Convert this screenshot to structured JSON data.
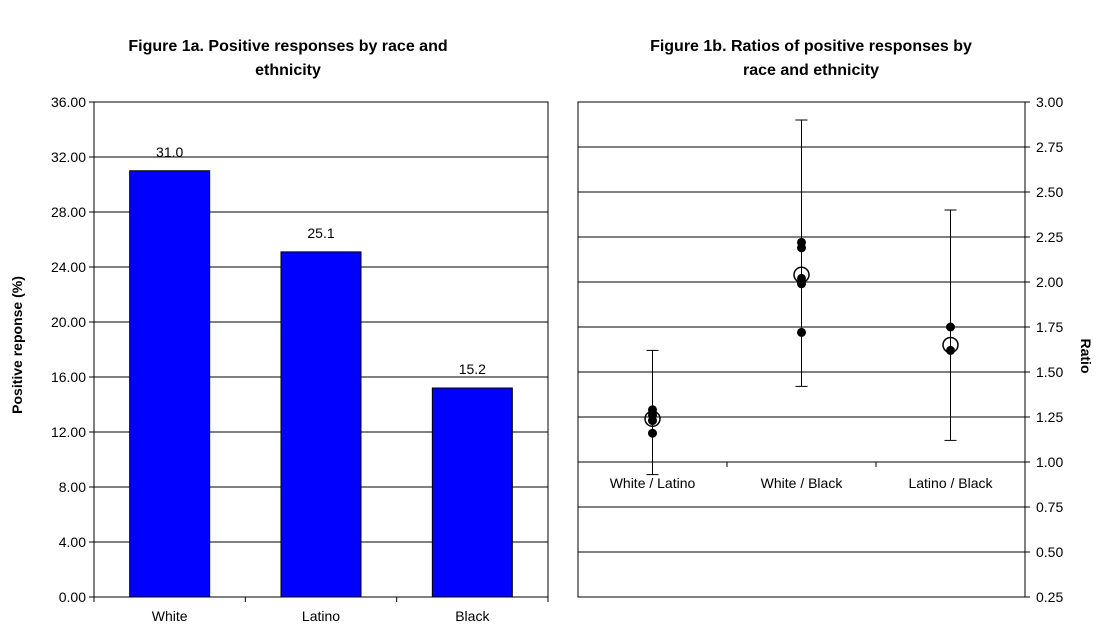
{
  "chart_data": [
    {
      "type": "bar",
      "title": "Figure 1a. Positive responses by race and ethnicity",
      "title_lines": [
        "Figure 1a. Positive responses by race and",
        "ethnicity"
      ],
      "ylabel": "Positive reponse (%)",
      "xlabel": "",
      "categories": [
        "White",
        "Latino",
        "Black"
      ],
      "values": [
        31.0,
        25.1,
        15.2
      ],
      "data_labels": [
        "31.0",
        "25.1",
        "15.2"
      ],
      "ylim": [
        0,
        36
      ],
      "yticks": [
        "0.00",
        "4.00",
        "8.00",
        "12.00",
        "16.00",
        "20.00",
        "24.00",
        "28.00",
        "32.00",
        "36.00"
      ],
      "bar_color": "#0000FF",
      "grid": true
    },
    {
      "type": "scatter",
      "title": "Figure 1b. Ratios of positive responses by race and ethnicity",
      "title_lines": [
        "Figure 1b. Ratios of positive responses by",
        "race and ethnicity"
      ],
      "ylabel": "Ratio",
      "xlabel": "",
      "categories": [
        "White / Latino",
        "White / Black",
        "Latino / Black"
      ],
      "ylim": [
        0.25,
        3.0
      ],
      "yticks": [
        "0.25",
        "0.50",
        "0.75",
        "1.00",
        "1.25",
        "1.50",
        "1.75",
        "2.00",
        "2.25",
        "2.50",
        "2.75",
        "3.00"
      ],
      "axis_side": "right",
      "category_axis_at": 1.0,
      "overall_ratio": [
        1.24,
        2.04,
        1.65
      ],
      "ci_low": [
        0.93,
        1.42,
        1.12
      ],
      "ci_high": [
        1.62,
        2.9,
        2.4
      ],
      "subgroup_ratios": [
        [
          1.16,
          1.23,
          1.26,
          1.29
        ],
        [
          1.72,
          1.99,
          2.02,
          2.19,
          2.22
        ],
        [
          1.62,
          1.75
        ]
      ],
      "grid": true
    }
  ]
}
